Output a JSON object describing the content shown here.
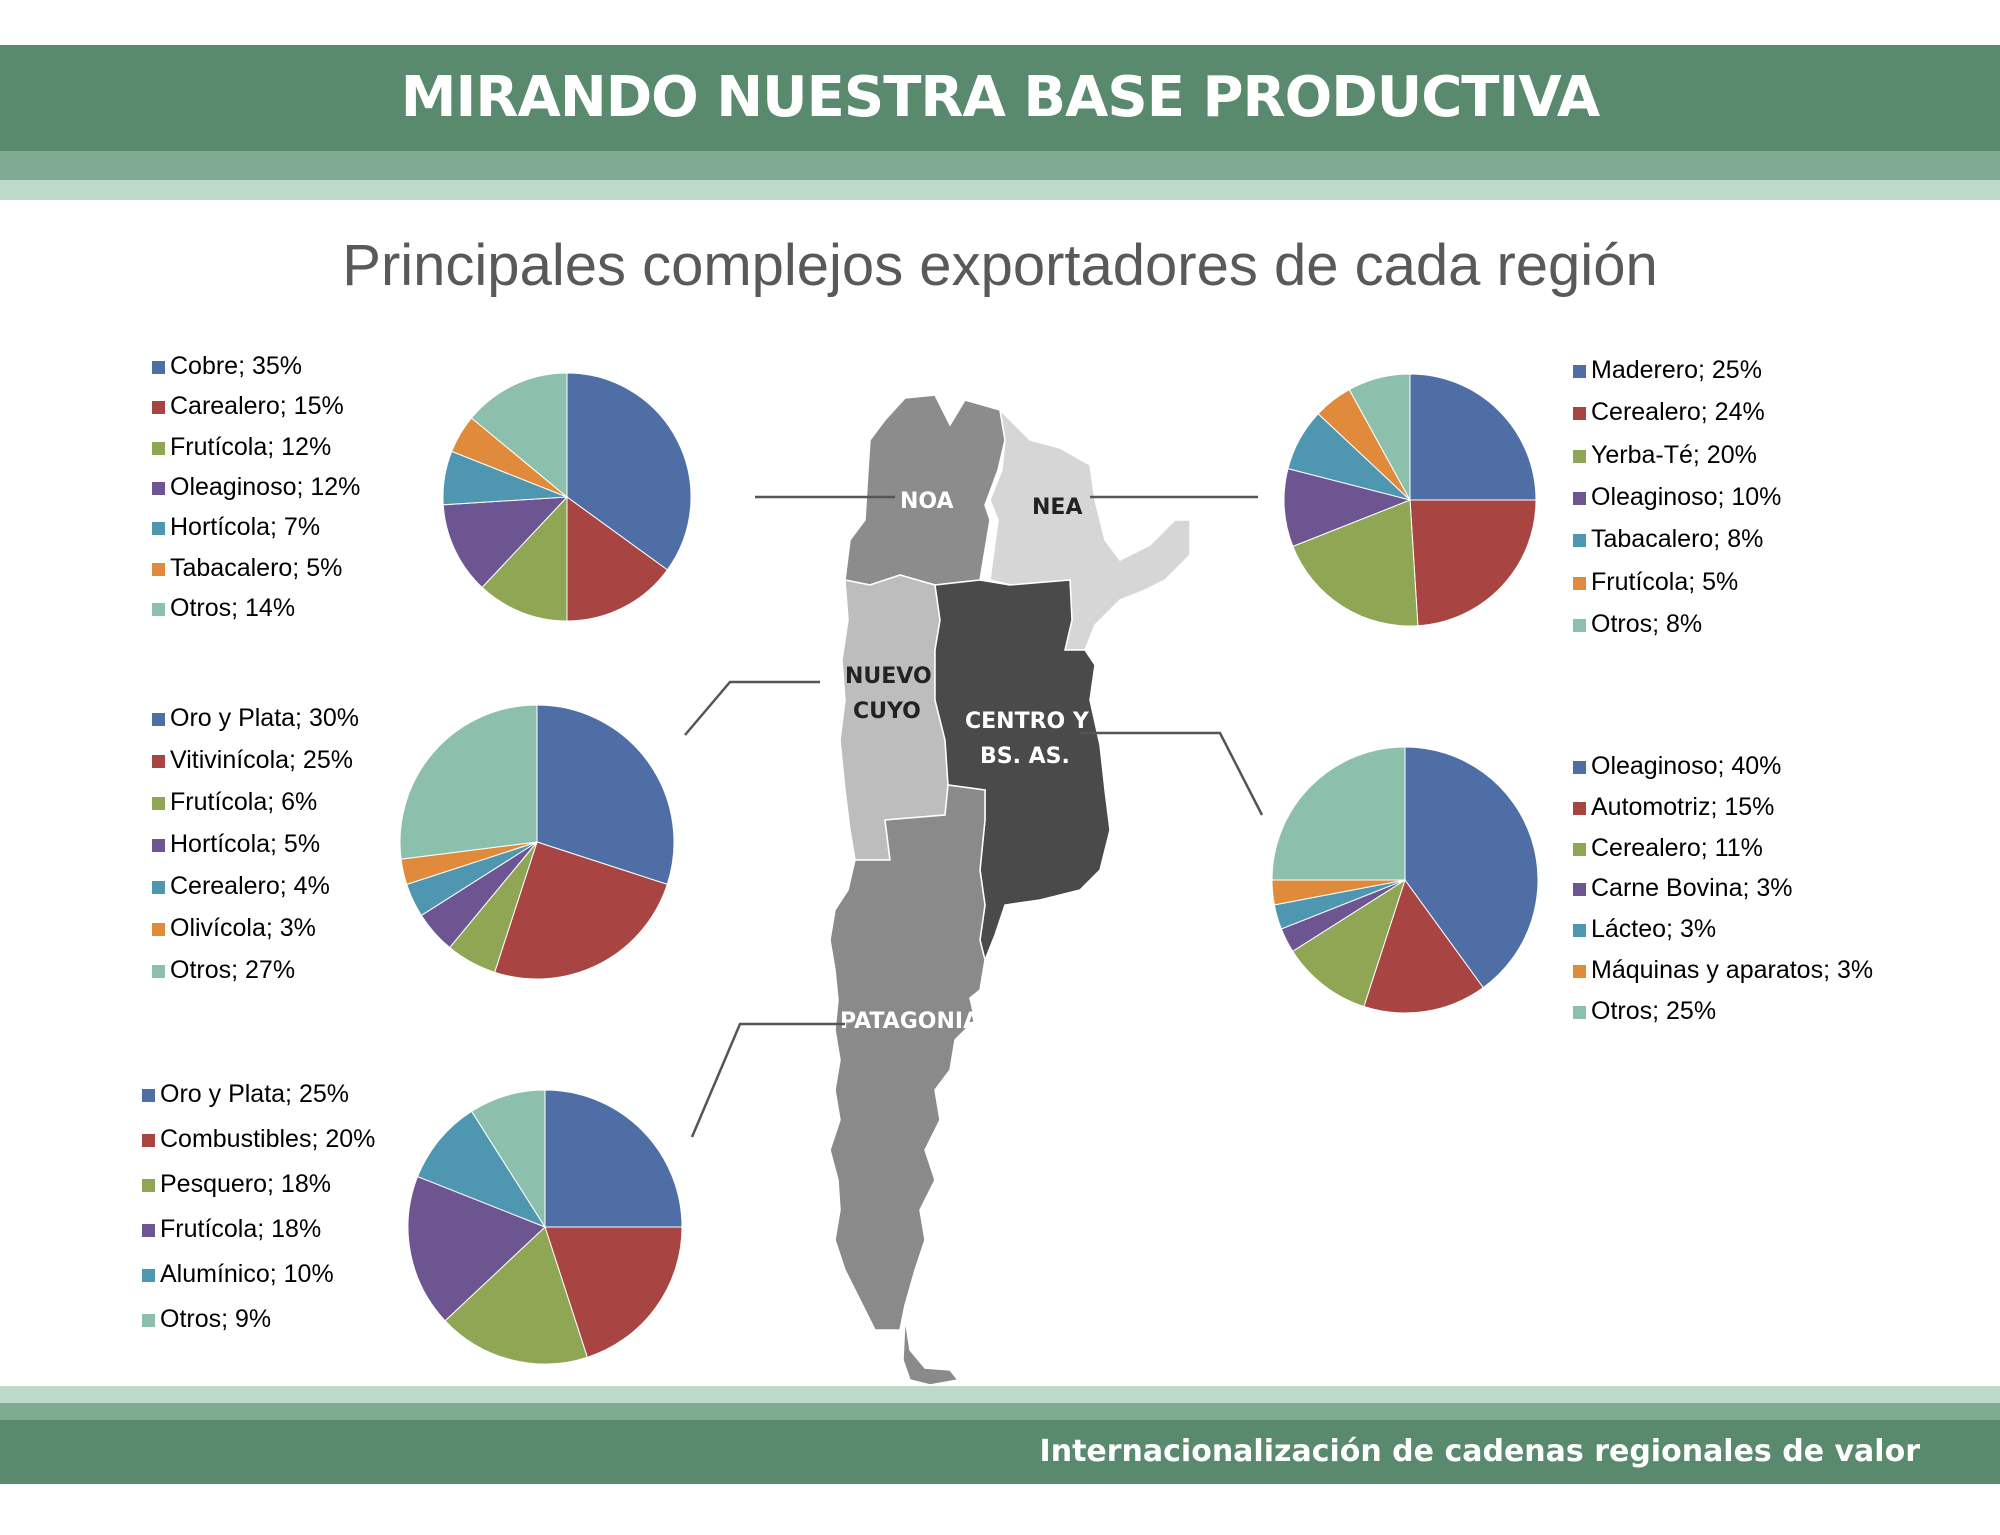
{
  "header": {
    "title": "MIRANDO NUESTRA BASE PRODUCTIVA"
  },
  "subtitle": "Principales complejos exportadores de cada región",
  "footer": {
    "text": "Internacionalización de cadenas regionales de valor"
  },
  "map": {
    "regions": [
      {
        "id": "noa",
        "label": "NOA",
        "color": "#8c8c8c"
      },
      {
        "id": "nea",
        "label": "NEA",
        "color": "#d6d6d6"
      },
      {
        "id": "cuyo",
        "label": "NUEVO CUYO",
        "color": "#bdbdbd"
      },
      {
        "id": "centro",
        "label": "CENTRO Y BS. AS.",
        "color": "#4a4a4a"
      },
      {
        "id": "patagonia",
        "label": "PATAGONIA",
        "color": "#8a8a8a"
      }
    ]
  },
  "colors": [
    "#4f6ea6",
    "#a84441",
    "#8fa655",
    "#6d5592",
    "#4f97b0",
    "#e08a3b",
    "#8cc0ad"
  ],
  "chart_data": [
    {
      "type": "pie",
      "region": "NOA",
      "categories": [
        "Cobre",
        "Carealero",
        "Frutícola",
        "Oleaginoso",
        "Hortícola",
        "Tabacalero",
        "Otros"
      ],
      "values": [
        35,
        15,
        12,
        12,
        7,
        5,
        14
      ],
      "labels": [
        "Cobre; 35%",
        "Carealero; 15%",
        "Frutícola; 12%",
        "Oleaginoso; 12%",
        "Hortícola; 7%",
        "Tabacalero; 5%",
        "Otros; 14%"
      ],
      "legend": "left"
    },
    {
      "type": "pie",
      "region": "NEA",
      "categories": [
        "Maderero",
        "Cerealero",
        "Yerba-Té",
        "Oleaginoso",
        "Tabacalero",
        "Frutícola",
        "Otros"
      ],
      "values": [
        25,
        24,
        20,
        10,
        8,
        5,
        8
      ],
      "labels": [
        "Maderero; 25%",
        "Cerealero; 24%",
        "Yerba-Té; 20%",
        "Oleaginoso; 10%",
        "Tabacalero; 8%",
        "Frutícola; 5%",
        "Otros; 8%"
      ],
      "legend": "right"
    },
    {
      "type": "pie",
      "region": "NUEVO CUYO",
      "categories": [
        "Oro y Plata",
        "Vitivinícola",
        "Frutícola",
        "Hortícola",
        "Cerealero",
        "Olivícola",
        "Otros"
      ],
      "values": [
        30,
        25,
        6,
        5,
        4,
        3,
        27
      ],
      "labels": [
        "Oro y Plata; 30%",
        "Vitivinícola; 25%",
        "Frutícola; 6%",
        "Hortícola; 5%",
        "Cerealero; 4%",
        "Olivícola; 3%",
        "Otros; 27%"
      ],
      "legend": "left"
    },
    {
      "type": "pie",
      "region": "CENTRO Y BS. AS.",
      "categories": [
        "Oleaginoso",
        "Automotriz",
        "Cerealero",
        "Carne Bovina",
        "Lácteo",
        "Máquinas y aparatos",
        "Otros"
      ],
      "values": [
        40,
        15,
        11,
        3,
        3,
        3,
        25
      ],
      "labels": [
        "Oleaginoso; 40%",
        "Automotriz; 15%",
        "Cerealero; 11%",
        "Carne Bovina; 3%",
        "Lácteo; 3%",
        "Máquinas y aparatos; 3%",
        "Otros; 25%"
      ],
      "legend": "right"
    },
    {
      "type": "pie",
      "region": "PATAGONIA",
      "categories": [
        "Oro y Plata",
        "Combustibles",
        "Pesquero",
        "Frutícola",
        "Alumínico",
        "Otros"
      ],
      "values": [
        25,
        20,
        18,
        18,
        10,
        9
      ],
      "labels": [
        "Oro y Plata; 25%",
        "Combustibles; 20%",
        "Pesquero; 18%",
        "Frutícola; 18%",
        "Alumínico; 10%",
        "Otros; 9%"
      ],
      "legend": "left"
    }
  ]
}
